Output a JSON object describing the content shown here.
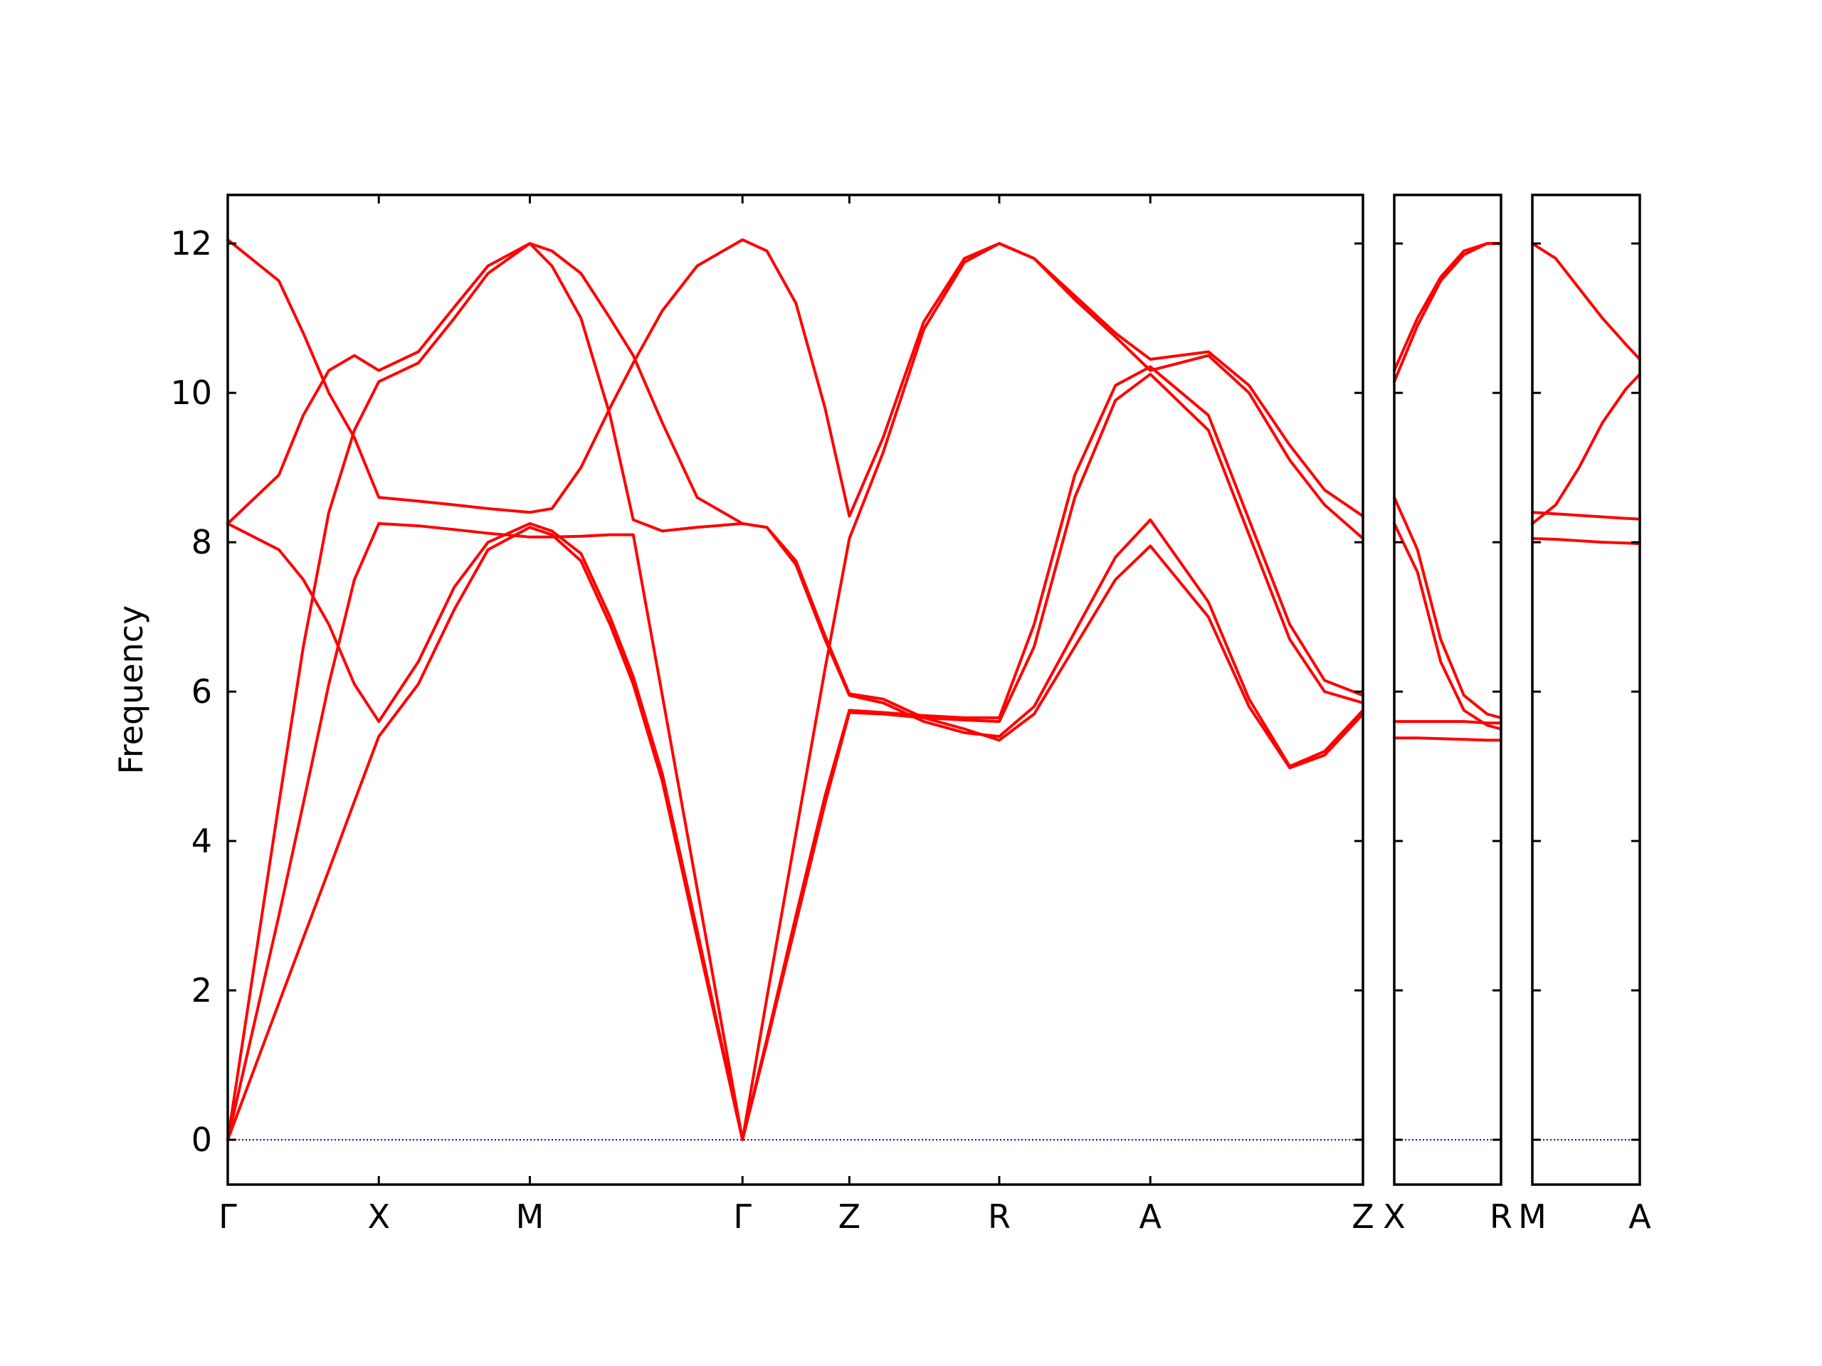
{
  "chart_data": [
    {
      "type": "line",
      "ylabel": "Frequency",
      "ytick_labels": true,
      "xlim": [
        0,
        9.77
      ],
      "ylim": [
        -0.6,
        12.65
      ],
      "yticks": [
        0,
        2,
        4,
        6,
        8,
        10,
        12
      ],
      "xticks": [
        {
          "value": 0,
          "label": "Γ"
        },
        {
          "value": 1.3,
          "label": "X"
        },
        {
          "value": 2.6,
          "label": "M"
        },
        {
          "value": 4.43,
          "label": "Γ"
        },
        {
          "value": 5.35,
          "label": "Z"
        },
        {
          "value": 6.64,
          "label": "R"
        },
        {
          "value": 7.94,
          "label": "A"
        },
        {
          "value": 9.77,
          "label": "Z"
        }
      ],
      "hline": {
        "y": 0,
        "color": "#0000ff",
        "dash": "dotted"
      },
      "x": [
        0,
        0.44,
        0.65,
        0.87,
        1.09,
        1.3,
        1.64,
        1.95,
        2.24,
        2.6,
        2.79,
        3.04,
        3.29,
        3.49,
        3.74,
        4.04,
        4.43,
        4.64,
        4.89,
        5.14,
        5.35,
        5.64,
        5.99,
        6.34,
        6.64,
        6.94,
        7.29,
        7.64,
        7.94,
        8.44,
        8.79,
        9.14,
        9.44,
        9.77
      ],
      "series": [
        {
          "color": "#ff0000",
          "values": [
            0,
            1.83,
            2.7,
            3.61,
            4.53,
            5.4,
            6.1,
            7.1,
            7.9,
            8.2,
            8.1,
            7.75,
            6.9,
            6.1,
            4.8,
            2.7,
            0,
            1.3,
            2.9,
            4.5,
            5.72,
            5.7,
            5.65,
            5.62,
            5.6,
            6.6,
            8.6,
            9.9,
            10.25,
            9.5,
            8.1,
            6.7,
            6.0,
            5.85
          ]
        },
        {
          "color": "#ff0000",
          "values": [
            8.25,
            7.9,
            7.5,
            6.9,
            6.1,
            5.6,
            6.4,
            7.4,
            8.0,
            8.25,
            8.15,
            7.85,
            7.0,
            6.2,
            4.9,
            2.8,
            0,
            1.35,
            3.0,
            4.6,
            5.75,
            5.72,
            5.68,
            5.65,
            5.65,
            6.9,
            8.9,
            10.1,
            10.35,
            9.7,
            8.3,
            6.9,
            6.15,
            5.95
          ]
        },
        {
          "color": "#ff0000",
          "values": [
            0,
            3.0,
            4.5,
            6.1,
            7.5,
            8.25,
            8.22,
            8.17,
            8.12,
            8.07,
            8.07,
            8.08,
            8.1,
            8.1,
            5.95,
            3.36,
            0,
            1.9,
            4.1,
            6.3,
            8.05,
            9.2,
            10.85,
            11.75,
            12.0,
            11.8,
            11.3,
            10.8,
            10.45,
            10.55,
            10.1,
            9.3,
            8.7,
            8.35
          ]
        },
        {
          "color": "#ff0000",
          "values": [
            0,
            4.5,
            6.6,
            8.4,
            9.5,
            10.15,
            10.4,
            11.0,
            11.6,
            12.0,
            11.7,
            11.0,
            9.7,
            8.3,
            8.15,
            8.2,
            8.25,
            8.2,
            7.7,
            6.7,
            5.95,
            5.85,
            5.6,
            5.45,
            5.4,
            5.8,
            6.8,
            7.8,
            8.3,
            7.2,
            5.9,
            5.0,
            5.2,
            5.75
          ]
        },
        {
          "color": "#ff0000",
          "values": [
            8.25,
            8.9,
            9.7,
            10.3,
            10.5,
            10.3,
            10.55,
            11.15,
            11.7,
            12.0,
            11.9,
            11.6,
            11.0,
            10.5,
            9.6,
            8.6,
            8.25,
            8.2,
            7.75,
            6.75,
            5.97,
            5.9,
            5.65,
            5.5,
            5.35,
            5.7,
            6.6,
            7.5,
            7.95,
            7.0,
            5.8,
            4.98,
            5.15,
            5.7
          ]
        },
        {
          "color": "#ff0000",
          "values": [
            12.05,
            11.5,
            10.8,
            10.0,
            9.4,
            8.6,
            8.55,
            8.5,
            8.45,
            8.4,
            8.45,
            9.0,
            9.8,
            10.4,
            11.1,
            11.7,
            12.05,
            11.9,
            11.2,
            9.8,
            8.35,
            9.4,
            10.95,
            11.8,
            12.0,
            11.8,
            11.25,
            10.75,
            10.3,
            10.5,
            10.0,
            9.1,
            8.5,
            8.05
          ]
        }
      ]
    },
    {
      "type": "line",
      "ytick_labels": false,
      "xlim": [
        0,
        0.92
      ],
      "ylim": [
        -0.6,
        12.65
      ],
      "yticks": [
        0,
        2,
        4,
        6,
        8,
        10,
        12
      ],
      "xticks": [
        {
          "value": 0,
          "label": "X"
        },
        {
          "value": 0.92,
          "label": "R"
        }
      ],
      "hline": {
        "y": 0,
        "color": "#0000ff",
        "dash": "dotted"
      },
      "x": [
        0,
        0.2,
        0.4,
        0.6,
        0.8,
        0.92
      ],
      "series": [
        {
          "color": "#ff0000",
          "values": [
            10.15,
            10.9,
            11.5,
            11.85,
            12.0,
            12.0
          ]
        },
        {
          "color": "#ff0000",
          "values": [
            10.3,
            11.0,
            11.55,
            11.9,
            12.0,
            12.0
          ]
        },
        {
          "color": "#ff0000",
          "values": [
            8.6,
            7.9,
            6.7,
            5.95,
            5.7,
            5.65
          ]
        },
        {
          "color": "#ff0000",
          "values": [
            8.25,
            7.6,
            6.4,
            5.75,
            5.55,
            5.5
          ]
        },
        {
          "color": "#ff0000",
          "values": [
            5.6,
            5.6,
            5.6,
            5.6,
            5.58,
            5.58
          ]
        },
        {
          "color": "#ff0000",
          "values": [
            5.38,
            5.38,
            5.37,
            5.36,
            5.35,
            5.35
          ]
        }
      ]
    },
    {
      "type": "line",
      "ytick_labels": false,
      "xlim": [
        0,
        0.92
      ],
      "ylim": [
        -0.6,
        12.65
      ],
      "yticks": [
        0,
        2,
        4,
        6,
        8,
        10,
        12
      ],
      "xticks": [
        {
          "value": 0,
          "label": "M"
        },
        {
          "value": 0.92,
          "label": "A"
        }
      ],
      "hline": {
        "y": 0,
        "color": "#0000ff",
        "dash": "dotted"
      },
      "x": [
        0,
        0.2,
        0.4,
        0.6,
        0.8,
        0.92
      ],
      "series": [
        {
          "color": "#ff0000",
          "values": [
            12.0,
            11.8,
            11.4,
            11.0,
            10.65,
            10.45
          ]
        },
        {
          "color": "#ff0000",
          "values": [
            8.25,
            8.5,
            9.0,
            9.6,
            10.05,
            10.25
          ]
        },
        {
          "color": "#ff0000",
          "values": [
            8.4,
            8.38,
            8.36,
            8.34,
            8.32,
            8.31
          ]
        },
        {
          "color": "#ff0000",
          "values": [
            8.05,
            8.04,
            8.02,
            8.0,
            7.99,
            7.98
          ]
        }
      ]
    }
  ]
}
